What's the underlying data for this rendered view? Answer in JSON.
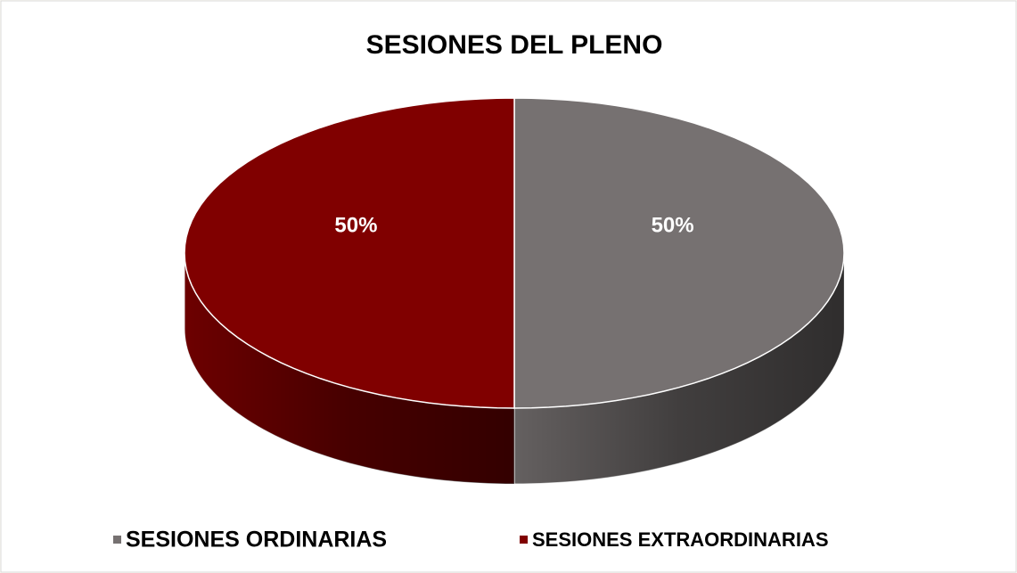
{
  "chart_data": {
    "type": "pie",
    "title": "SESIONES DEL PLENO",
    "categories": [
      "SESIONES ORDINARIAS",
      "SESIONES EXTRAORDINARIAS"
    ],
    "values": [
      50,
      50
    ],
    "value_labels": [
      "50%",
      "50%"
    ],
    "colors": [
      "#767171",
      "#800000"
    ],
    "legend": "bottom"
  }
}
